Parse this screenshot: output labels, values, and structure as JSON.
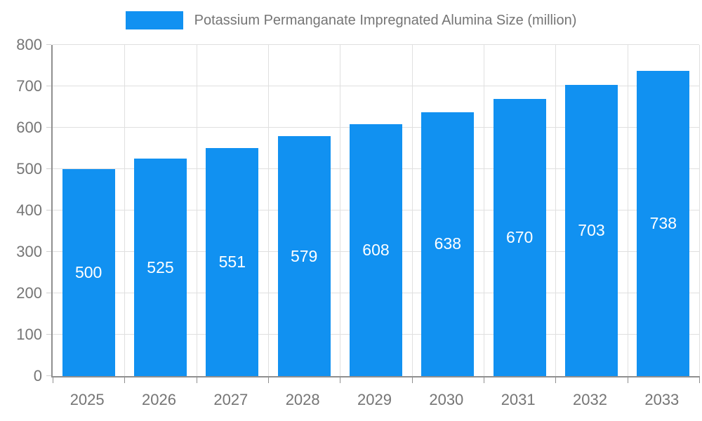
{
  "chart_data": {
    "type": "bar",
    "title": "Potassium Permanganate Impregnated Alumina Size (million)",
    "categories": [
      "2025",
      "2026",
      "2027",
      "2028",
      "2029",
      "2030",
      "2031",
      "2032",
      "2033"
    ],
    "values": [
      500,
      525,
      551,
      579,
      608,
      638,
      670,
      703,
      738
    ],
    "xlabel": "",
    "ylabel": "",
    "ylim": [
      0,
      800
    ],
    "ytick_step": 100,
    "grid": true,
    "legend_position": "top",
    "colors": {
      "bar": "#1191f1",
      "value_label": "#ffffff",
      "axis_text": "#757575",
      "grid_line": "#e0e0e0",
      "axis_line": "#8f8f8f",
      "tick_line": "#cfcfcf"
    }
  }
}
